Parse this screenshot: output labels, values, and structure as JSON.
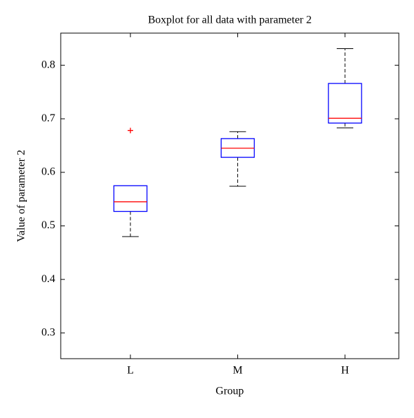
{
  "chart_data": {
    "type": "box",
    "title": "Boxplot for all data with parameter 2",
    "x_label": "Group",
    "y_label": "Value of parameter 2",
    "categories": [
      "L",
      "M",
      "H"
    ],
    "min": [
      0.48,
      0.574,
      0.683
    ],
    "q1": [
      0.527,
      0.628,
      0.692
    ],
    "median": [
      0.545,
      0.645,
      0.701
    ],
    "q3": [
      0.575,
      0.663,
      0.766
    ],
    "max": [
      0.575,
      0.676,
      0.831
    ],
    "outliers": [
      [
        0.678
      ],
      [],
      []
    ],
    "box_color": "#0000ff",
    "median_color": "#ff0000",
    "whisker_color": "#000000",
    "outlier_color": "#ff0000",
    "ylim": [
      0.252,
      0.86
    ],
    "yticks": [
      0.3,
      0.4,
      0.5,
      0.6,
      0.7,
      0.8
    ]
  }
}
